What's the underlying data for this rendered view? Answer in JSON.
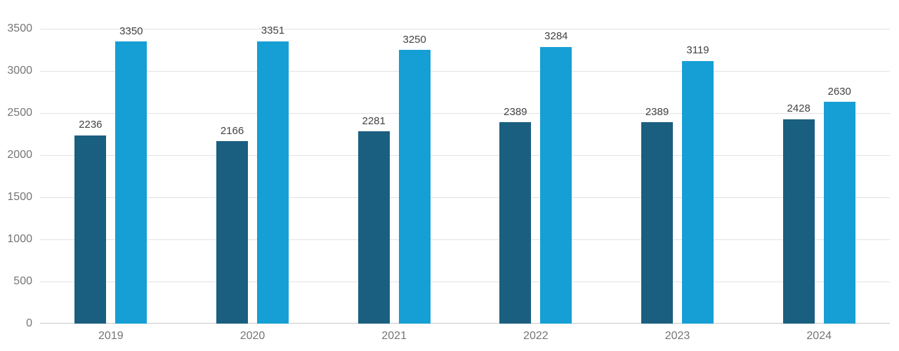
{
  "chart_data": {
    "type": "bar",
    "title": "",
    "categories": [
      "2019",
      "2020",
      "2021",
      "2022",
      "2023",
      "2024"
    ],
    "series": [
      {
        "name": "series-1",
        "color": "#1a5f80",
        "values": [
          2236,
          2166,
          2281,
          2389,
          2389,
          2428
        ]
      },
      {
        "name": "series-2",
        "color": "#169fd4",
        "values": [
          3350,
          3351,
          3250,
          3284,
          3119,
          2630
        ]
      }
    ],
    "value_labels_shown": true,
    "legend_position": "none",
    "grid": true,
    "y_axis": {
      "min": 0,
      "max": 3500,
      "tick_step": 500,
      "ticks": [
        0,
        500,
        1000,
        1500,
        2000,
        2500,
        3000,
        3500
      ]
    },
    "colors": {
      "background": "#ffffff",
      "gridline": "#e2e2e2",
      "baseline": "#c9c9c9",
      "axis_label": "#757575",
      "value_label": "#424242"
    }
  }
}
